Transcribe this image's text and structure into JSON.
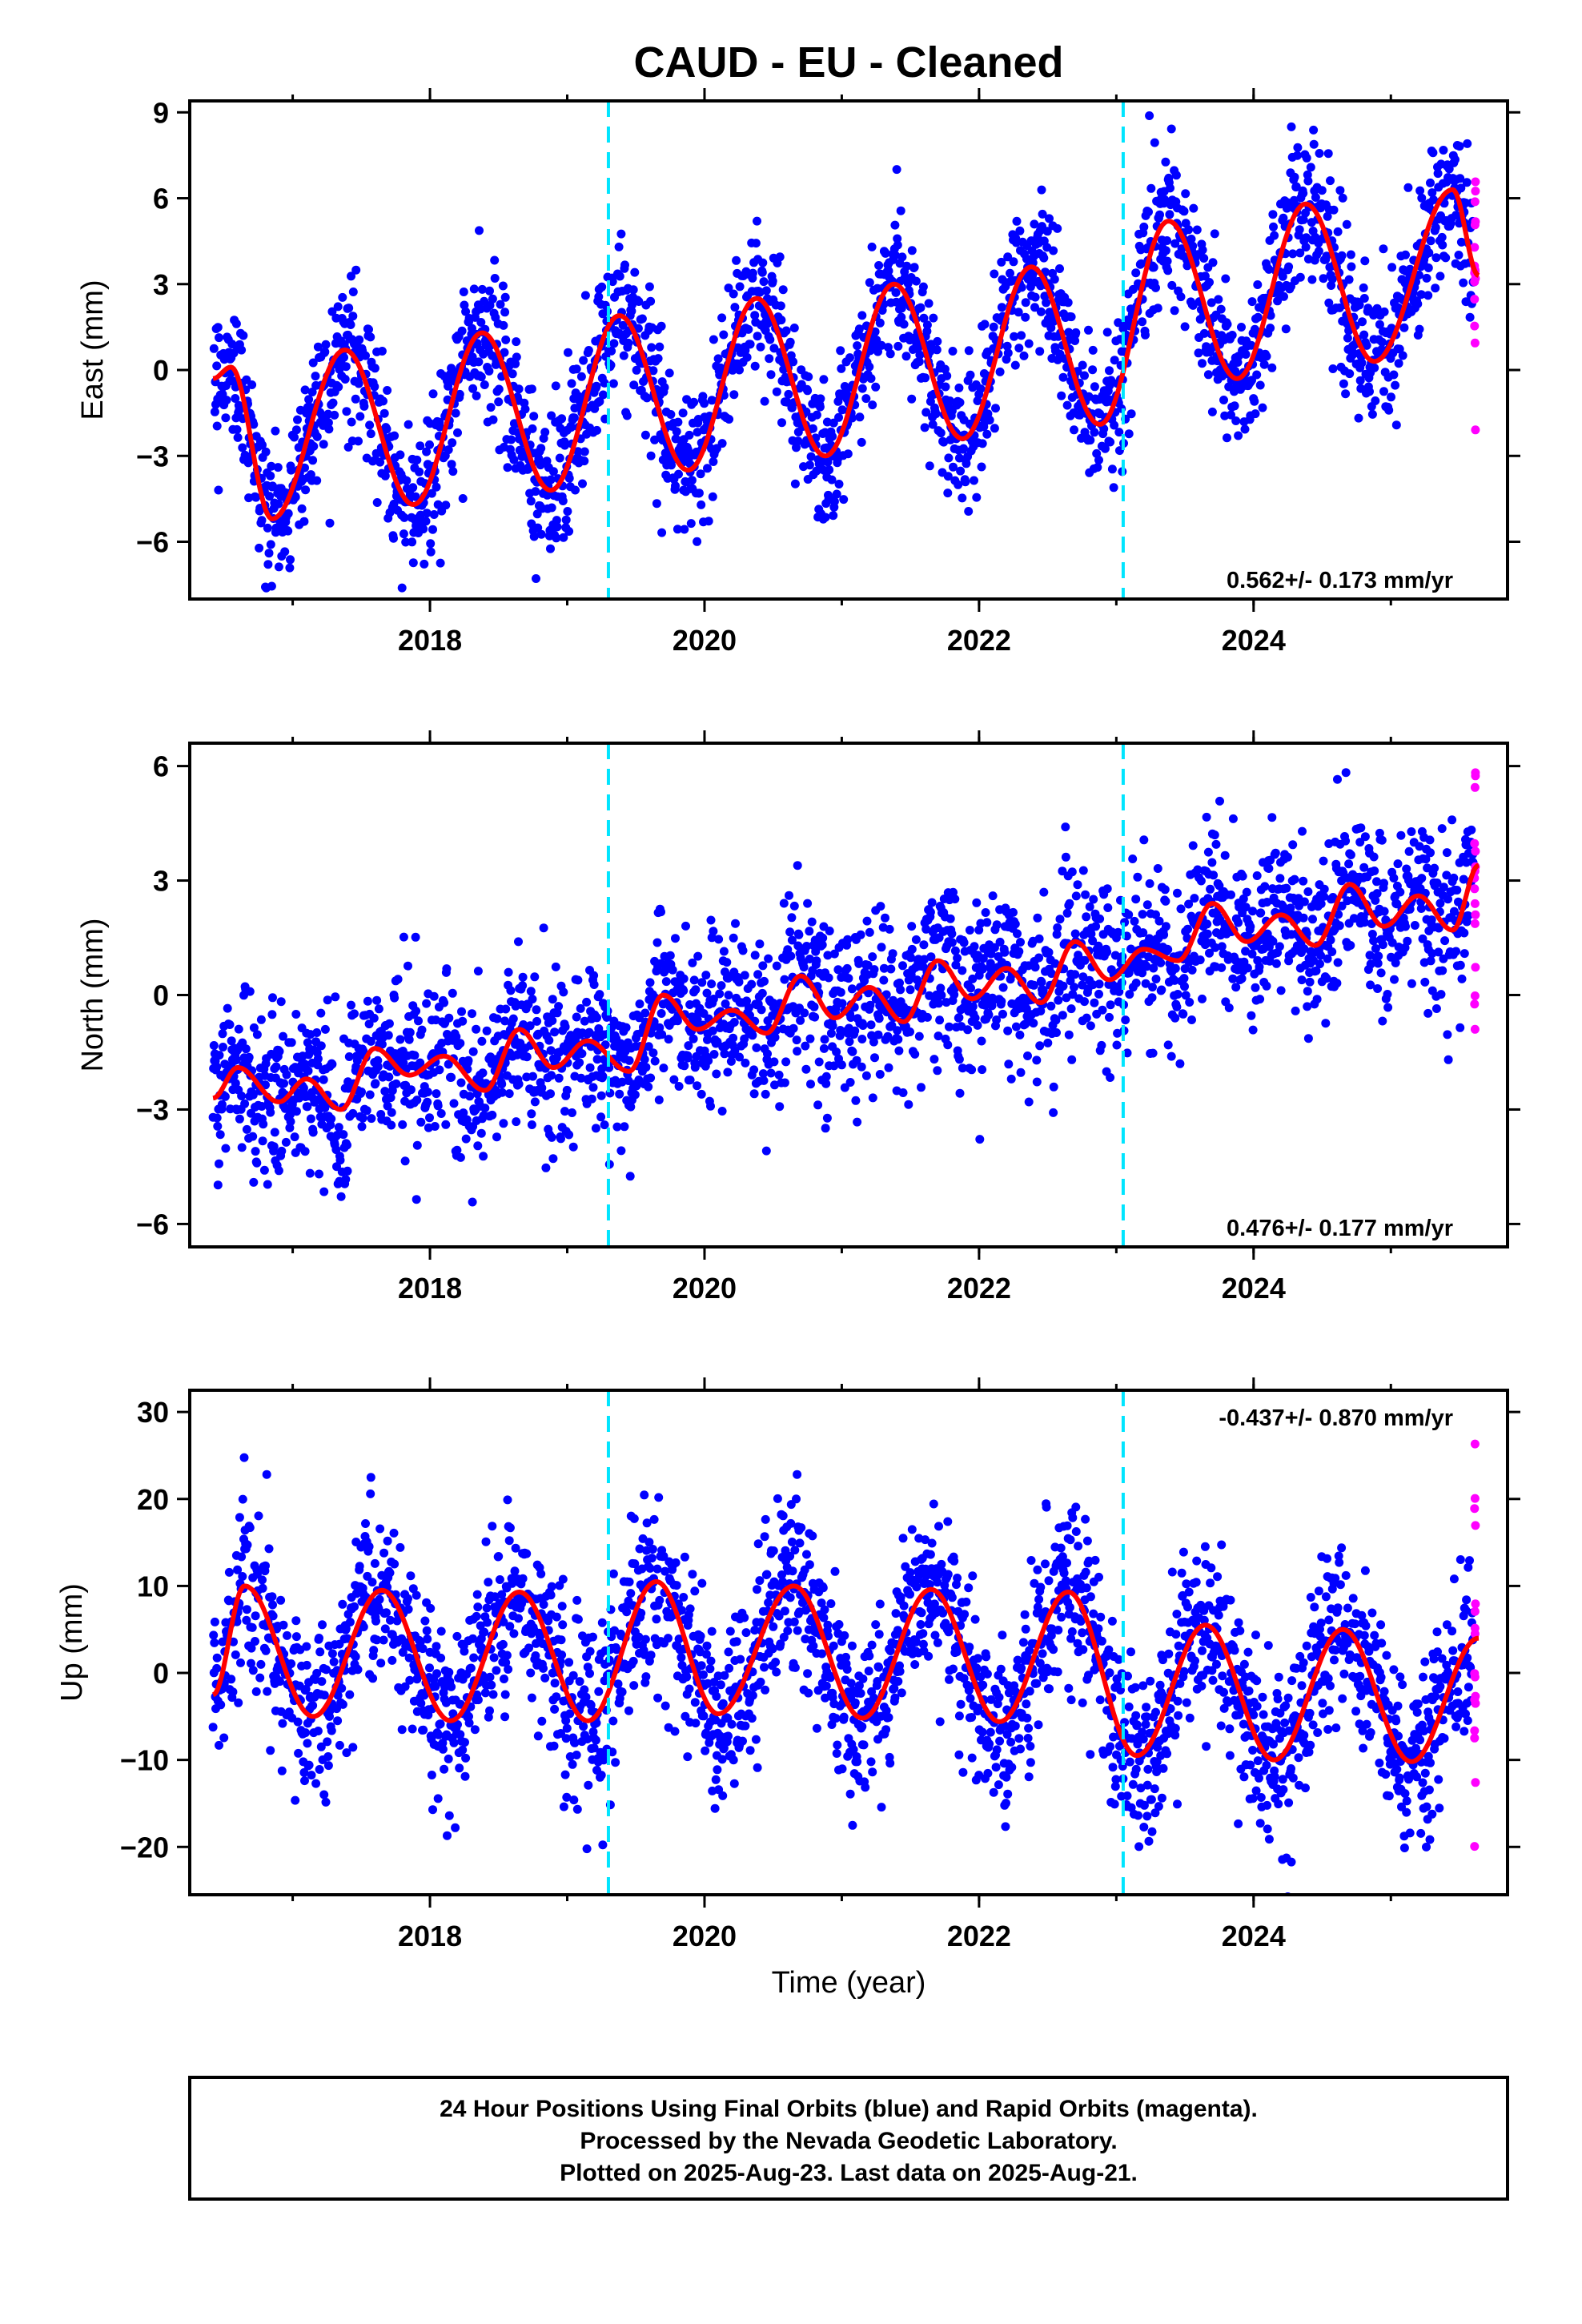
{
  "title": "CAUD  - EU - Cleaned",
  "xlabel": "Time (year)",
  "caption": [
    "24 Hour Positions Using Final Orbits (blue) and Rapid Orbits (magenta).",
    "Processed by the Nevada Geodetic Laboratory.",
    "Plotted on 2025-Aug-23. Last data on 2025-Aug-21."
  ],
  "colors": {
    "final": "#0000ff",
    "rapid": "#ff00ff",
    "model": "#ff0000",
    "break": "#00e5ff"
  },
  "chart_data": [
    {
      "type": "scatter",
      "ylabel": "East (mm)",
      "rate_label": "0.562+/- 0.173 mm/yr",
      "xlim": [
        2016.25,
        2025.85
      ],
      "ylim": [
        -8.0,
        9.4
      ],
      "xticks": [
        2018,
        2020,
        2022,
        2024
      ],
      "yticks": [
        -6,
        -3,
        0,
        3,
        6,
        9
      ],
      "ytick_labels": [
        "−6",
        "−3",
        "0",
        "3",
        "6",
        "9"
      ],
      "breaks": [
        2019.3,
        2023.05
      ],
      "data_start": 2016.42,
      "rapid_start": 2025.6,
      "data_end": 2025.64,
      "model": {
        "x": [
          2016.42,
          2016.55,
          2016.85,
          2017.38,
          2017.88,
          2018.38,
          2018.88,
          2019.38,
          2019.88,
          2020.38,
          2020.88,
          2021.38,
          2021.88,
          2022.38,
          2022.88,
          2023.38,
          2023.88,
          2024.38,
          2024.88,
          2025.45,
          2025.64
        ],
        "y": [
          -0.3,
          0.1,
          -5.2,
          0.7,
          -4.7,
          1.3,
          -4.2,
          1.9,
          -3.5,
          2.5,
          -3.0,
          3.0,
          -2.4,
          3.6,
          -1.9,
          5.2,
          -0.3,
          5.8,
          0.3,
          6.3,
          3.3
        ]
      },
      "scatter_sigma": 1.3
    },
    {
      "type": "scatter",
      "ylabel": "North (mm)",
      "rate_label": "0.476+/- 0.177 mm/yr",
      "xlim": [
        2016.25,
        2025.85
      ],
      "ylim": [
        -6.6,
        6.6
      ],
      "xticks": [
        2018,
        2020,
        2022,
        2024
      ],
      "yticks": [
        -6,
        -3,
        0,
        3,
        6
      ],
      "ytick_labels": [
        "−6",
        "−3",
        "0",
        "3",
        "6"
      ],
      "breaks": [
        2019.3,
        2023.05
      ],
      "data_start": 2016.42,
      "rapid_start": 2025.6,
      "data_end": 2025.64,
      "model": {
        "x": [
          2016.42,
          2016.6,
          2016.9,
          2017.1,
          2017.35,
          2017.6,
          2017.85,
          2018.1,
          2018.4,
          2018.65,
          2018.9,
          2019.15,
          2019.45,
          2019.7,
          2019.95,
          2020.2,
          2020.45,
          2020.7,
          2020.95,
          2021.2,
          2021.45,
          2021.7,
          2021.95,
          2022.2,
          2022.45,
          2022.7,
          2022.95,
          2023.2,
          2023.45,
          2023.7,
          2023.95,
          2024.2,
          2024.45,
          2024.7,
          2024.95,
          2025.2,
          2025.45,
          2025.64
        ],
        "y": [
          -2.7,
          -1.9,
          -2.8,
          -2.2,
          -3.0,
          -1.4,
          -2.1,
          -1.6,
          -2.5,
          -0.9,
          -1.9,
          -1.2,
          -2.0,
          0.0,
          -0.9,
          -0.4,
          -1.0,
          0.5,
          -0.6,
          0.2,
          -0.7,
          0.9,
          -0.1,
          0.7,
          -0.2,
          1.4,
          0.4,
          1.2,
          0.9,
          2.4,
          1.4,
          2.1,
          1.3,
          2.9,
          1.8,
          2.6,
          1.7,
          3.4
        ]
      },
      "scatter_sigma": 1.1
    },
    {
      "type": "scatter",
      "ylabel": "Up (mm)",
      "rate_label": "-0.437+/- 0.870 mm/yr",
      "xlim": [
        2016.25,
        2025.85
      ],
      "ylim": [
        -25.5,
        32.5
      ],
      "xticks": [
        2018,
        2020,
        2022,
        2024
      ],
      "yticks": [
        -20,
        -10,
        0,
        10,
        20,
        30
      ],
      "ytick_labels": [
        "−20",
        "−10",
        "0",
        "10",
        "20",
        "30"
      ],
      "breaks": [
        2019.3,
        2023.05
      ],
      "data_start": 2016.42,
      "rapid_start": 2025.6,
      "data_end": 2025.64,
      "model": {
        "x": [
          2016.42,
          2016.65,
          2017.15,
          2017.65,
          2018.15,
          2018.65,
          2019.15,
          2019.65,
          2020.1,
          2020.65,
          2021.15,
          2021.65,
          2022.15,
          2022.65,
          2023.15,
          2023.65,
          2024.15,
          2024.65,
          2025.15,
          2025.64
        ],
        "y": [
          -2.5,
          10.0,
          -5.0,
          9.5,
          -5.5,
          9.3,
          -5.5,
          10.5,
          -4.7,
          10.0,
          -5.2,
          9.6,
          -5.6,
          9.3,
          -9.5,
          5.5,
          -10.0,
          5.0,
          -10.2,
          4.0
        ]
      },
      "scatter_sigma": 5.0
    }
  ]
}
